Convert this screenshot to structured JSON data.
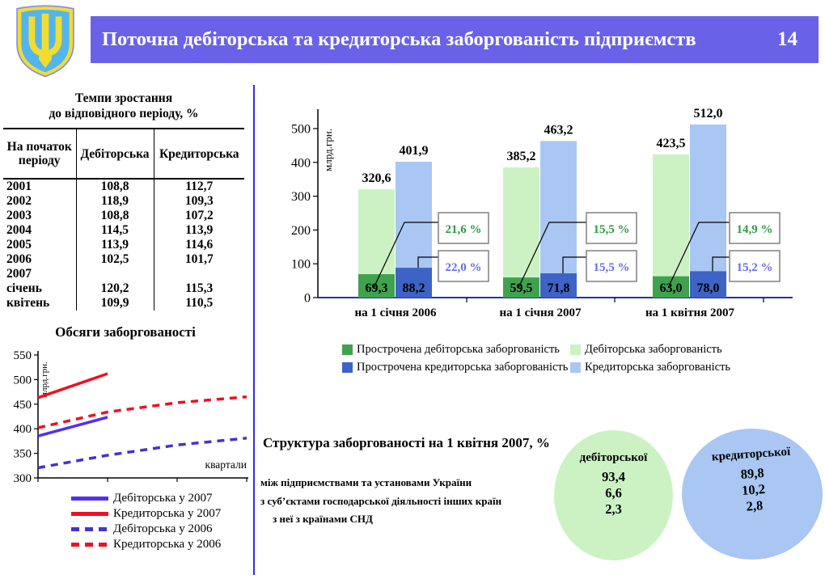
{
  "header": {
    "title": "Поточна дебіторська та кредиторська заборгованість підприємств",
    "page_number": "14"
  },
  "logo": {
    "name": "coat-of-arms-ukraine"
  },
  "colors": {
    "header_bg": "#6A61E9",
    "divider": "#3A2BE8",
    "overdue_debtor": "#3FA24F",
    "debtor": "#CCF2C4",
    "overdue_creditor": "#3E63C6",
    "creditor": "#A9C7F2",
    "callout_green_text": "#2F9A43",
    "callout_blue_text": "#6A6AF0",
    "shield": "#52B5EE",
    "trident": "#F2DC30"
  },
  "growth_table": {
    "title_line1": "Темпи зростання",
    "title_line2": "до відповідного періоду, %",
    "col_headers": [
      "На початок періоду",
      "Дебіторська",
      "Кредиторська"
    ],
    "rows": [
      [
        "2001",
        "108,8",
        "112,7"
      ],
      [
        "2002",
        "118,9",
        "109,3"
      ],
      [
        "2003",
        "108,8",
        "107,2"
      ],
      [
        "2004",
        "114,5",
        "113,9"
      ],
      [
        "2005",
        "113,9",
        "114,6"
      ],
      [
        "2006",
        "102,5",
        "101,7"
      ],
      [
        "2007",
        "",
        ""
      ],
      [
        "січень",
        "120,2",
        "115,3"
      ],
      [
        "квітень",
        "109,9",
        "110,5"
      ]
    ]
  },
  "chart_data": [
    {
      "type": "bar",
      "title": "",
      "ylabel": "млрд.грн.",
      "ylim": [
        0,
        550
      ],
      "yticks": [
        0,
        100,
        200,
        300,
        400,
        500
      ],
      "categories": [
        "на 1 січня 2006",
        "на 1 січня 2007",
        "на 1 квітня 2007"
      ],
      "series": [
        {
          "name": "Прострочена дебіторська заборгованість",
          "color": "#3FA24F",
          "values": [
            69.3,
            59.5,
            63.0
          ]
        },
        {
          "name": "Дебіторська заборгованість",
          "color": "#CCF2C4",
          "values": [
            320.6,
            385.2,
            423.5
          ]
        },
        {
          "name": "Прострочена кредиторська заборгованість",
          "color": "#3E63C6",
          "values": [
            88.2,
            71.8,
            78.0
          ]
        },
        {
          "name": "Кредиторська заборгованість",
          "color": "#A9C7F2",
          "values": [
            401.9,
            463.2,
            512.0
          ]
        }
      ],
      "callouts": [
        {
          "debtor_overdue_share": "21,6 %",
          "creditor_overdue_share": "22,0 %"
        },
        {
          "debtor_overdue_share": "15,5 %",
          "creditor_overdue_share": "15,5 %"
        },
        {
          "debtor_overdue_share": "14,9 %",
          "creditor_overdue_share": "15,2 %"
        }
      ],
      "legend_position": "bottom"
    },
    {
      "type": "line",
      "title": "Обсяги заборгованості",
      "ylabel": "млрд.грн.",
      "xlabel": "квартали",
      "ylim": [
        300,
        550
      ],
      "yticks": [
        300,
        350,
        400,
        450,
        500,
        550
      ],
      "series": [
        {
          "name": "Дебіторська у 2007",
          "style": "solid",
          "color": "#5230EE",
          "x": [
            1,
            2
          ],
          "values": [
            385.2,
            423.5
          ]
        },
        {
          "name": "Кредиторська у 2007",
          "style": "solid",
          "color": "#F01020",
          "x": [
            1,
            2
          ],
          "values": [
            463.2,
            512.0
          ]
        },
        {
          "name": "Дебіторська у 2006",
          "style": "dashed",
          "color": "#4433CC",
          "x": [
            1,
            2,
            3,
            4
          ],
          "values": [
            320.6,
            346,
            367,
            381
          ]
        },
        {
          "name": "Кредиторська у 2006",
          "style": "dashed",
          "color": "#F01020",
          "x": [
            1,
            2,
            3,
            4
          ],
          "values": [
            401.9,
            434,
            453,
            465
          ]
        }
      ],
      "legend_position": "bottom"
    }
  ],
  "structure": {
    "title": "Структура заборгованості на 1 квітня 2007, %",
    "rows": [
      "між підприємствами та установами України",
      "з суб’єктами господарської діяльності інших країн",
      "з неї з країнами СНД"
    ],
    "debtor_circle": {
      "label": "дебіторської",
      "values": [
        "93,4",
        "6,6",
        "2,3"
      ]
    },
    "creditor_circle": {
      "label": "кредиторської",
      "values": [
        "89,8",
        "10,2",
        "2,8"
      ]
    }
  }
}
